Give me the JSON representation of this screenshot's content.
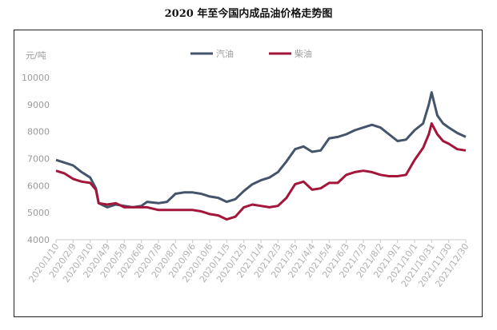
{
  "chart_data": {
    "type": "line",
    "title": "2020 年至今国内成品油价格走势图",
    "ylabel": "元/吨",
    "ylim": [
      4000,
      10000
    ],
    "yticks": [
      "4000",
      "5000",
      "6000",
      "7000",
      "8000",
      "9000",
      "10000"
    ],
    "xticks": [
      "2020/1/10",
      "2020/2/9",
      "2020/3/10",
      "2020/4/9",
      "2020/5/9",
      "2020/6/8",
      "2020/7/8",
      "2020/8/7",
      "2020/9/6",
      "2020/10/6",
      "2020/11/5",
      "2020/12/5",
      "2021/1/4",
      "2021/2/3",
      "2021/3/5",
      "2021/4/4",
      "2021/5/4",
      "2021/6/3",
      "2021/7/3",
      "2021/8/2",
      "2021/9/1",
      "2021/10/1",
      "2021/10/31",
      "2021/11/30",
      "2021/12/30"
    ],
    "legend_position": "top",
    "series": [
      {
        "name": "汽油",
        "color": "#44546a",
        "points": [
          [
            "2020/1/10",
            6950
          ],
          [
            "2020/1/25",
            6850
          ],
          [
            "2020/2/9",
            6750
          ],
          [
            "2020/2/24",
            6500
          ],
          [
            "2020/3/10",
            6300
          ],
          [
            "2020/3/20",
            5900
          ],
          [
            "2020/3/25",
            5350
          ],
          [
            "2020/4/9",
            5200
          ],
          [
            "2020/4/24",
            5300
          ],
          [
            "2020/5/9",
            5250
          ],
          [
            "2020/5/24",
            5200
          ],
          [
            "2020/6/8",
            5250
          ],
          [
            "2020/6/18",
            5400
          ],
          [
            "2020/7/8",
            5350
          ],
          [
            "2020/7/23",
            5400
          ],
          [
            "2020/8/7",
            5700
          ],
          [
            "2020/8/22",
            5750
          ],
          [
            "2020/9/6",
            5750
          ],
          [
            "2020/9/21",
            5700
          ],
          [
            "2020/10/6",
            5600
          ],
          [
            "2020/10/21",
            5550
          ],
          [
            "2020/11/5",
            5400
          ],
          [
            "2020/11/20",
            5500
          ],
          [
            "2020/12/5",
            5800
          ],
          [
            "2020/12/20",
            6050
          ],
          [
            "2021/1/4",
            6200
          ],
          [
            "2021/1/19",
            6300
          ],
          [
            "2021/2/3",
            6500
          ],
          [
            "2021/2/18",
            6900
          ],
          [
            "2021/3/5",
            7350
          ],
          [
            "2021/3/20",
            7450
          ],
          [
            "2021/4/4",
            7250
          ],
          [
            "2021/4/19",
            7300
          ],
          [
            "2021/5/4",
            7750
          ],
          [
            "2021/5/19",
            7800
          ],
          [
            "2021/6/3",
            7900
          ],
          [
            "2021/6/18",
            8050
          ],
          [
            "2021/7/3",
            8150
          ],
          [
            "2021/7/18",
            8250
          ],
          [
            "2021/8/2",
            8150
          ],
          [
            "2021/8/17",
            7900
          ],
          [
            "2021/9/1",
            7650
          ],
          [
            "2021/9/16",
            7700
          ],
          [
            "2021/10/1",
            8050
          ],
          [
            "2021/10/16",
            8300
          ],
          [
            "2021/10/26",
            9000
          ],
          [
            "2021/10/31",
            9450
          ],
          [
            "2021/11/10",
            8600
          ],
          [
            "2021/11/20",
            8300
          ],
          [
            "2021/11/30",
            8150
          ],
          [
            "2021/12/15",
            7950
          ],
          [
            "2021/12/30",
            7800
          ]
        ]
      },
      {
        "name": "柴油",
        "color": "#a3163a",
        "points": [
          [
            "2020/1/10",
            6550
          ],
          [
            "2020/1/25",
            6450
          ],
          [
            "2020/2/9",
            6250
          ],
          [
            "2020/2/24",
            6150
          ],
          [
            "2020/3/10",
            6100
          ],
          [
            "2020/3/20",
            5850
          ],
          [
            "2020/3/25",
            5350
          ],
          [
            "2020/4/9",
            5300
          ],
          [
            "2020/4/24",
            5350
          ],
          [
            "2020/5/9",
            5200
          ],
          [
            "2020/5/24",
            5200
          ],
          [
            "2020/6/8",
            5200
          ],
          [
            "2020/6/18",
            5200
          ],
          [
            "2020/7/8",
            5100
          ],
          [
            "2020/7/23",
            5100
          ],
          [
            "2020/8/7",
            5100
          ],
          [
            "2020/8/22",
            5100
          ],
          [
            "2020/9/6",
            5100
          ],
          [
            "2020/9/21",
            5050
          ],
          [
            "2020/10/6",
            4950
          ],
          [
            "2020/10/21",
            4900
          ],
          [
            "2020/11/5",
            4750
          ],
          [
            "2020/11/20",
            4850
          ],
          [
            "2020/12/5",
            5200
          ],
          [
            "2020/12/20",
            5300
          ],
          [
            "2021/1/4",
            5250
          ],
          [
            "2021/1/19",
            5200
          ],
          [
            "2021/2/3",
            5250
          ],
          [
            "2021/2/18",
            5550
          ],
          [
            "2021/3/5",
            6050
          ],
          [
            "2021/3/20",
            6150
          ],
          [
            "2021/4/4",
            5850
          ],
          [
            "2021/4/19",
            5900
          ],
          [
            "2021/5/4",
            6100
          ],
          [
            "2021/5/19",
            6100
          ],
          [
            "2021/6/3",
            6400
          ],
          [
            "2021/6/18",
            6500
          ],
          [
            "2021/7/3",
            6550
          ],
          [
            "2021/7/18",
            6500
          ],
          [
            "2021/8/2",
            6400
          ],
          [
            "2021/8/17",
            6350
          ],
          [
            "2021/9/1",
            6350
          ],
          [
            "2021/9/16",
            6400
          ],
          [
            "2021/10/1",
            6950
          ],
          [
            "2021/10/16",
            7400
          ],
          [
            "2021/10/26",
            7900
          ],
          [
            "2021/10/31",
            8300
          ],
          [
            "2021/11/10",
            7900
          ],
          [
            "2021/11/20",
            7650
          ],
          [
            "2021/11/30",
            7550
          ],
          [
            "2021/12/15",
            7350
          ],
          [
            "2021/12/30",
            7300
          ]
        ]
      }
    ]
  }
}
